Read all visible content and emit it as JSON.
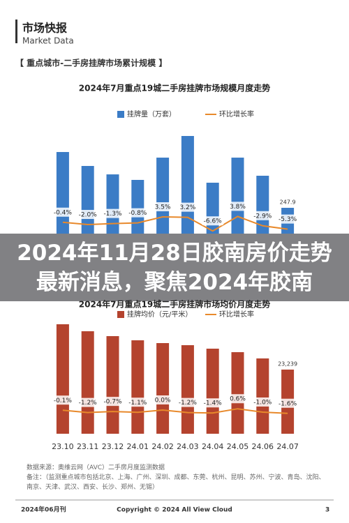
{
  "header": {
    "title": "市场快报",
    "subtitle": "Market Data"
  },
  "section_title": "【 重点城市-二手房挂牌市场累计规模 】",
  "chart_data": [
    {
      "type": "bar",
      "title": "2024年7月重点19城二手房挂牌市场规模月度走势",
      "categories": [
        null,
        null,
        null,
        null,
        null,
        null,
        null,
        null,
        null,
        null
      ],
      "series": [
        {
          "name": "挂牌量（万套）",
          "color": "#3b7cc6",
          "values": [
            784,
            650,
            569,
            516,
            730,
            938,
            489,
            730,
            556,
            247.9
          ],
          "value_labels": [
            null,
            null,
            null,
            null,
            null,
            null,
            null,
            null,
            null,
            "247.9"
          ]
        },
        {
          "name": "环比增长率",
          "color": "#e8892b",
          "axis": "y2",
          "values": [
            -0.4,
            -2.0,
            -1.3,
            -0.8,
            3.5,
            3.2,
            -6.6,
            3.8,
            -2.9,
            -5.3
          ],
          "value_labels": [
            "-0.4%",
            "-2.0%",
            "-1.3%",
            "-0.8%",
            "3.5%",
            "3.2%",
            "-6.6%",
            "3.8%",
            "-2.9%",
            "-5.3%"
          ]
        }
      ]
    },
    {
      "type": "bar",
      "title": "2024年7月重点19城二手房挂牌市场均价月度走势",
      "categories": [
        "23.10",
        "23.11",
        "23.12",
        "24.01",
        "24.02",
        "24.03",
        "24.04",
        "24.05",
        "24.06",
        "24.07"
      ],
      "series": [
        {
          "name": "挂牌均价（元/平米）",
          "color": "#b4432e",
          "values": [
            39660,
            37130,
            35360,
            33850,
            32840,
            32080,
            30820,
            29550,
            27280,
            23239
          ],
          "value_labels": [
            null,
            null,
            null,
            null,
            null,
            null,
            null,
            null,
            null,
            "23,239"
          ]
        },
        {
          "name": "环比增长率",
          "color": "#e8892b",
          "axis": "y2",
          "values": [
            -0.1,
            -1.2,
            -0.7,
            -1.1,
            0.0,
            -1.2,
            -1.4,
            0.6,
            -1.0,
            -1.6
          ],
          "value_labels": [
            "-0.1%",
            "-1.2%",
            "-0.7%",
            "-1.1%",
            "0.0%",
            "-1.2%",
            "-1.4%",
            "0.6%",
            "-1.0%",
            "-1.6%"
          ]
        }
      ]
    }
  ],
  "overlay_title": "2024年11月28日胶南房价走势最新消息，聚焦2024年胶南",
  "source": "数据来源：奥维云网（AVC）二手房月度监测数据",
  "note": "备注：（监测重点城市包括北京、上海、广州、深圳、成都、东莞、杭州、昆明、苏州、宁波、青岛、沈阳、南京、天津、武汉、西安、长沙、郑州、无锡）",
  "footer": {
    "issue": "2024年06月刊",
    "copyright": "Copyright © 2024 All View Cloud",
    "page": "3"
  }
}
